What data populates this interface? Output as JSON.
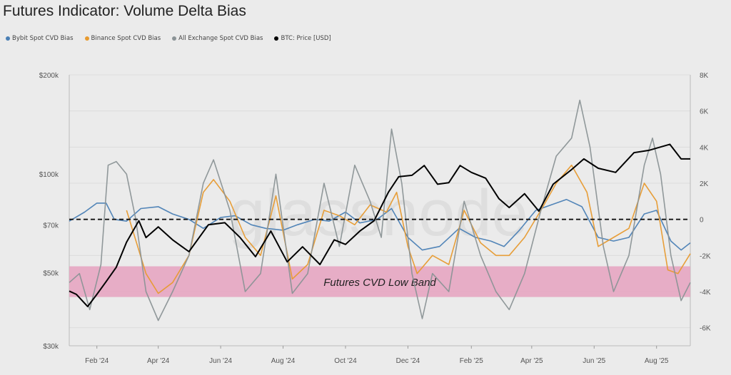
{
  "title": "Futures Indicator: Volume Delta Bias",
  "watermark": "glassnode",
  "legend": [
    {
      "label": "Bybit Spot CVD Bias",
      "color": "#4a7fb5"
    },
    {
      "label": "Binance Spot CVD Bias",
      "color": "#e79a2f"
    },
    {
      "label": "All Exchange Spot CVD Bias",
      "color": "#8b9396"
    },
    {
      "label": "BTC: Price [USD]",
      "color": "#000000"
    }
  ],
  "chart_data": {
    "type": "line",
    "title": "Futures Indicator: Volume Delta Bias",
    "x_range": [
      "2024-01-05",
      "2025-09-03"
    ],
    "x_ticks": [
      "Feb '24",
      "Apr '24",
      "Jun '24",
      "Aug '24",
      "Oct '24",
      "Dec '24",
      "Feb '25",
      "Apr '25",
      "Jun '25",
      "Aug '25"
    ],
    "x_tick_dates": [
      "2024-02-01",
      "2024-04-01",
      "2024-06-01",
      "2024-08-01",
      "2024-10-01",
      "2024-12-01",
      "2025-02-01",
      "2025-04-01",
      "2025-06-01",
      "2025-08-01"
    ],
    "left_axis": {
      "scale": "log",
      "range": [
        30000,
        200000
      ],
      "ticks": [
        "$30k",
        "$50k",
        "$70k",
        "$100k",
        "$200k"
      ],
      "tick_values": [
        30000,
        50000,
        70000,
        100000,
        200000
      ]
    },
    "right_axis": {
      "scale": "linear",
      "range": [
        -7000,
        8000
      ],
      "ticks": [
        "-6K",
        "-4K",
        "-2K",
        "0",
        "2K",
        "4K",
        "6K",
        "8K"
      ],
      "tick_values": [
        -6000,
        -4000,
        -2000,
        0,
        2000,
        4000,
        6000,
        8000
      ]
    },
    "zero_line": {
      "value": 0,
      "style": "dashed",
      "color": "#000000"
    },
    "band": {
      "label": "Futures CVD Low Band",
      "from": -4300,
      "to": -2600,
      "color": "#e6a2c0"
    },
    "grid": true,
    "legend_position": "top-left",
    "series": [
      {
        "name": "Bybit Spot CVD Bias",
        "axis": "right",
        "color": "#4a7fb5",
        "points": [
          [
            "2024-01-05",
            -100
          ],
          [
            "2024-01-20",
            400
          ],
          [
            "2024-02-01",
            900
          ],
          [
            "2024-02-10",
            900
          ],
          [
            "2024-02-18",
            0
          ],
          [
            "2024-03-01",
            -100
          ],
          [
            "2024-03-15",
            600
          ],
          [
            "2024-04-01",
            700
          ],
          [
            "2024-04-15",
            300
          ],
          [
            "2024-05-01",
            0
          ],
          [
            "2024-05-15",
            -500
          ],
          [
            "2024-06-01",
            100
          ],
          [
            "2024-06-15",
            200
          ],
          [
            "2024-07-01",
            -300
          ],
          [
            "2024-07-15",
            -500
          ],
          [
            "2024-08-01",
            -600
          ],
          [
            "2024-08-15",
            -300
          ],
          [
            "2024-09-01",
            0
          ],
          [
            "2024-09-15",
            -100
          ],
          [
            "2024-10-01",
            400
          ],
          [
            "2024-10-15",
            -200
          ],
          [
            "2024-11-01",
            0
          ],
          [
            "2024-11-15",
            600
          ],
          [
            "2024-12-01",
            -1000
          ],
          [
            "2024-12-15",
            -1700
          ],
          [
            "2025-01-01",
            -1500
          ],
          [
            "2025-01-20",
            -500
          ],
          [
            "2025-02-05",
            -1000
          ],
          [
            "2025-02-20",
            -1200
          ],
          [
            "2025-03-05",
            -1500
          ],
          [
            "2025-03-20",
            -600
          ],
          [
            "2025-04-05",
            500
          ],
          [
            "2025-04-20",
            800
          ],
          [
            "2025-05-05",
            1100
          ],
          [
            "2025-05-20",
            700
          ],
          [
            "2025-06-05",
            -1000
          ],
          [
            "2025-06-20",
            -1200
          ],
          [
            "2025-07-05",
            -1000
          ],
          [
            "2025-07-20",
            300
          ],
          [
            "2025-08-01",
            500
          ],
          [
            "2025-08-15",
            -1200
          ],
          [
            "2025-08-25",
            -1700
          ],
          [
            "2025-09-03",
            -1300
          ]
        ]
      },
      {
        "name": "Binance Spot CVD Bias",
        "axis": "right",
        "color": "#e79a2f",
        "points": [
          [
            "2024-03-01",
            500
          ],
          [
            "2024-03-20",
            -3000
          ],
          [
            "2024-04-01",
            -4100
          ],
          [
            "2024-04-15",
            -3500
          ],
          [
            "2024-05-01",
            -2000
          ],
          [
            "2024-05-15",
            1500
          ],
          [
            "2024-05-25",
            2200
          ],
          [
            "2024-06-10",
            1000
          ],
          [
            "2024-06-25",
            -1000
          ],
          [
            "2024-07-10",
            -2000
          ],
          [
            "2024-07-25",
            1300
          ],
          [
            "2024-08-10",
            -3300
          ],
          [
            "2024-08-25",
            -2500
          ],
          [
            "2024-09-10",
            500
          ],
          [
            "2024-09-25",
            200
          ],
          [
            "2024-10-10",
            -300
          ],
          [
            "2024-10-25",
            800
          ],
          [
            "2024-11-10",
            400
          ],
          [
            "2024-11-20",
            1500
          ],
          [
            "2024-12-01",
            -1500
          ],
          [
            "2024-12-10",
            -3000
          ],
          [
            "2024-12-25",
            -2000
          ],
          [
            "2025-01-10",
            -2500
          ],
          [
            "2025-01-25",
            500
          ],
          [
            "2025-02-10",
            -1300
          ],
          [
            "2025-02-25",
            -2000
          ],
          [
            "2025-03-10",
            -2000
          ],
          [
            "2025-03-25",
            -1000
          ],
          [
            "2025-04-10",
            500
          ],
          [
            "2025-04-25",
            2000
          ],
          [
            "2025-05-10",
            3000
          ],
          [
            "2025-05-25",
            1500
          ],
          [
            "2025-06-05",
            -1500
          ],
          [
            "2025-06-20",
            -1000
          ],
          [
            "2025-07-05",
            -500
          ],
          [
            "2025-07-20",
            2000
          ],
          [
            "2025-08-01",
            1000
          ],
          [
            "2025-08-12",
            -2800
          ],
          [
            "2025-08-22",
            -3000
          ],
          [
            "2025-09-03",
            -1900
          ]
        ]
      },
      {
        "name": "All Exchange Spot CVD Bias",
        "axis": "right",
        "color": "#8b9396",
        "points": [
          [
            "2024-01-05",
            -3500
          ],
          [
            "2024-01-15",
            -3000
          ],
          [
            "2024-01-25",
            -5000
          ],
          [
            "2024-02-05",
            -2500
          ],
          [
            "2024-02-12",
            3000
          ],
          [
            "2024-02-20",
            3200
          ],
          [
            "2024-03-01",
            2500
          ],
          [
            "2024-03-10",
            0
          ],
          [
            "2024-03-20",
            -4000
          ],
          [
            "2024-04-01",
            -5600
          ],
          [
            "2024-04-15",
            -4000
          ],
          [
            "2024-05-01",
            -2000
          ],
          [
            "2024-05-15",
            2000
          ],
          [
            "2024-05-25",
            3300
          ],
          [
            "2024-06-10",
            500
          ],
          [
            "2024-06-25",
            -4000
          ],
          [
            "2024-07-10",
            -3000
          ],
          [
            "2024-07-25",
            2500
          ],
          [
            "2024-08-10",
            -4100
          ],
          [
            "2024-08-25",
            -3000
          ],
          [
            "2024-09-10",
            2000
          ],
          [
            "2024-09-25",
            -1500
          ],
          [
            "2024-10-10",
            3000
          ],
          [
            "2024-10-25",
            1000
          ],
          [
            "2024-11-05",
            -1000
          ],
          [
            "2024-11-15",
            5000
          ],
          [
            "2024-11-25",
            2000
          ],
          [
            "2024-12-05",
            -3000
          ],
          [
            "2024-12-15",
            -5500
          ],
          [
            "2024-12-25",
            -3000
          ],
          [
            "2025-01-10",
            -4000
          ],
          [
            "2025-01-25",
            1000
          ],
          [
            "2025-02-10",
            -2000
          ],
          [
            "2025-02-25",
            -4000
          ],
          [
            "2025-03-10",
            -5000
          ],
          [
            "2025-03-25",
            -3000
          ],
          [
            "2025-04-10",
            500
          ],
          [
            "2025-04-25",
            3500
          ],
          [
            "2025-05-10",
            4500
          ],
          [
            "2025-05-18",
            6600
          ],
          [
            "2025-05-28",
            4000
          ],
          [
            "2025-06-10",
            -1500
          ],
          [
            "2025-06-20",
            -4000
          ],
          [
            "2025-07-05",
            -2000
          ],
          [
            "2025-07-20",
            3000
          ],
          [
            "2025-07-28",
            4500
          ],
          [
            "2025-08-05",
            2500
          ],
          [
            "2025-08-15",
            -2000
          ],
          [
            "2025-08-25",
            -4500
          ],
          [
            "2025-09-03",
            -3500
          ]
        ]
      },
      {
        "name": "BTC: Price [USD]",
        "axis": "left",
        "color": "#000000",
        "points": [
          [
            "2024-01-05",
            44000
          ],
          [
            "2024-01-12",
            43000
          ],
          [
            "2024-01-23",
            39500
          ],
          [
            "2024-02-01",
            43000
          ],
          [
            "2024-02-10",
            47000
          ],
          [
            "2024-02-20",
            52000
          ],
          [
            "2024-03-01",
            62000
          ],
          [
            "2024-03-13",
            72000
          ],
          [
            "2024-03-20",
            64000
          ],
          [
            "2024-04-01",
            69000
          ],
          [
            "2024-04-15",
            63000
          ],
          [
            "2024-05-01",
            58000
          ],
          [
            "2024-05-20",
            70000
          ],
          [
            "2024-06-05",
            71000
          ],
          [
            "2024-06-20",
            64000
          ],
          [
            "2024-07-05",
            56000
          ],
          [
            "2024-07-20",
            67000
          ],
          [
            "2024-08-05",
            54000
          ],
          [
            "2024-08-20",
            60000
          ],
          [
            "2024-09-06",
            53000
          ],
          [
            "2024-09-20",
            63000
          ],
          [
            "2024-10-01",
            61000
          ],
          [
            "2024-10-15",
            67000
          ],
          [
            "2024-10-29",
            72000
          ],
          [
            "2024-11-12",
            88000
          ],
          [
            "2024-11-22",
            98000
          ],
          [
            "2024-12-05",
            99000
          ],
          [
            "2024-12-17",
            106000
          ],
          [
            "2024-12-30",
            93000
          ],
          [
            "2025-01-10",
            94000
          ],
          [
            "2025-01-21",
            106000
          ],
          [
            "2025-02-01",
            101000
          ],
          [
            "2025-02-15",
            97000
          ],
          [
            "2025-02-28",
            84000
          ],
          [
            "2025-03-10",
            79000
          ],
          [
            "2025-03-25",
            87000
          ],
          [
            "2025-04-08",
            77000
          ],
          [
            "2025-04-22",
            93000
          ],
          [
            "2025-05-10",
            103000
          ],
          [
            "2025-05-22",
            111000
          ],
          [
            "2025-06-05",
            104000
          ],
          [
            "2025-06-22",
            101000
          ],
          [
            "2025-07-10",
            116000
          ],
          [
            "2025-07-25",
            118000
          ],
          [
            "2025-08-14",
            123000
          ],
          [
            "2025-08-25",
            111000
          ],
          [
            "2025-09-03",
            111000
          ]
        ]
      }
    ]
  }
}
